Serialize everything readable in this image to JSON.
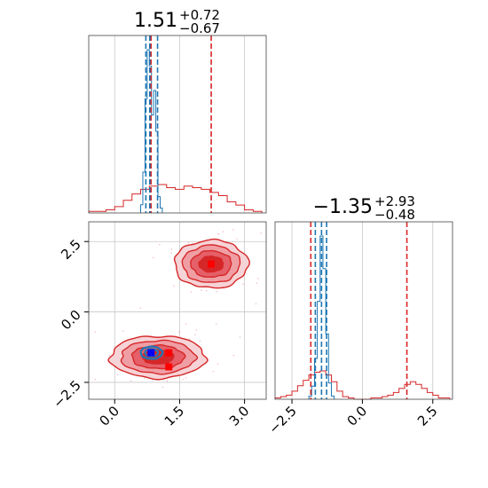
{
  "chart_data": [
    {
      "type": "histogram",
      "panel": "marginal-x",
      "title_value": "1.51",
      "title_plus": "+0.72",
      "title_minus": "−0.67",
      "xlim": [
        -0.6,
        3.5
      ],
      "grid": true,
      "series": [
        {
          "color": "#d62728",
          "bin_edges": [
            -0.6,
            -0.4,
            -0.2,
            0.0,
            0.2,
            0.4,
            0.6,
            0.8,
            1.0,
            1.2,
            1.4,
            1.6,
            1.8,
            2.0,
            2.2,
            2.4,
            2.6,
            2.8,
            3.0,
            3.2,
            3.4
          ],
          "counts": [
            1,
            1,
            2,
            4,
            8,
            12,
            15,
            17,
            18,
            16,
            15,
            17,
            16,
            15,
            13,
            11,
            7,
            5,
            2,
            1
          ],
          "quantile_lines": [
            0.84,
            2.23
          ]
        },
        {
          "color": "#1f77b4",
          "bin_edges": [
            0.6,
            0.65,
            0.7,
            0.75,
            0.8,
            0.85,
            0.9,
            0.95,
            1.0,
            1.05,
            1.1
          ],
          "counts": [
            5,
            25,
            70,
            100,
            90,
            60,
            75,
            50,
            10,
            3
          ],
          "quantile_lines": [
            0.72,
            0.81,
            0.99
          ]
        }
      ]
    },
    {
      "type": "contour",
      "panel": "joint",
      "xlim": [
        -0.6,
        3.5
      ],
      "ylim": [
        -3.1,
        3.2
      ],
      "grid": true,
      "x_ticks": [
        "0.0",
        "1.5",
        "3.0"
      ],
      "y_ticks": [
        "2.5",
        "0.0",
        "−2.5"
      ],
      "x_tick_values": [
        0.0,
        1.5,
        3.0
      ],
      "y_tick_values": [
        2.5,
        0.0,
        -2.5
      ],
      "clusters": [
        {
          "color": "#d62728",
          "center": [
            1.0,
            -1.6
          ],
          "spread": [
            1.1,
            0.75
          ]
        },
        {
          "color": "#d62728",
          "center": [
            2.23,
            1.7
          ],
          "spread": [
            0.85,
            0.85
          ]
        },
        {
          "color": "#1f77b4",
          "center": [
            0.85,
            -1.45
          ],
          "spread": [
            0.25,
            0.22
          ]
        }
      ],
      "markers": [
        {
          "x": 2.23,
          "y": 1.7,
          "color": "#ff0000"
        },
        {
          "x": 0.84,
          "y": -1.45,
          "color": "#ff0000"
        },
        {
          "x": 1.25,
          "y": -1.45,
          "color": "#ff0000"
        },
        {
          "x": 1.25,
          "y": -1.95,
          "color": "#ff0000"
        },
        {
          "x": 0.84,
          "y": -1.45,
          "color": "#0000ff"
        }
      ]
    },
    {
      "type": "histogram",
      "panel": "marginal-y",
      "title_value": "−1.35",
      "title_plus": "+2.93",
      "title_minus": "−0.48",
      "xlim": [
        -3.1,
        3.2
      ],
      "x_ticks": [
        "−2.5",
        "0.0",
        "2.5"
      ],
      "x_tick_values": [
        -2.5,
        0.0,
        2.5
      ],
      "grid": true,
      "series": [
        {
          "color": "#d62728",
          "bin_edges": [
            -3.1,
            -2.9,
            -2.7,
            -2.5,
            -2.3,
            -2.1,
            -1.9,
            -1.7,
            -1.5,
            -1.3,
            -1.1,
            -0.9,
            -0.7,
            -0.5,
            -0.3,
            -0.1,
            0.1,
            0.3,
            0.5,
            0.7,
            0.9,
            1.1,
            1.3,
            1.5,
            1.7,
            1.9,
            2.1,
            2.3,
            2.5,
            2.7,
            2.9,
            3.1
          ],
          "counts": [
            1,
            2,
            3,
            6,
            10,
            14,
            18,
            20,
            21,
            18,
            13,
            6,
            2,
            1,
            0,
            0,
            0,
            1,
            1,
            2,
            3,
            5,
            8,
            11,
            13,
            11,
            8,
            5,
            3,
            1,
            1
          ],
          "quantile_lines": [
            -1.83,
            1.58
          ]
        },
        {
          "color": "#1f77b4",
          "bin_edges": [
            -1.9,
            -1.8,
            -1.7,
            -1.6,
            -1.5,
            -1.4,
            -1.3,
            -1.2,
            -1.1,
            -1.0
          ],
          "counts": [
            2,
            8,
            25,
            60,
            100,
            80,
            40,
            10,
            2
          ],
          "quantile_lines": [
            -1.67,
            -1.45,
            -1.27
          ]
        }
      ]
    }
  ]
}
